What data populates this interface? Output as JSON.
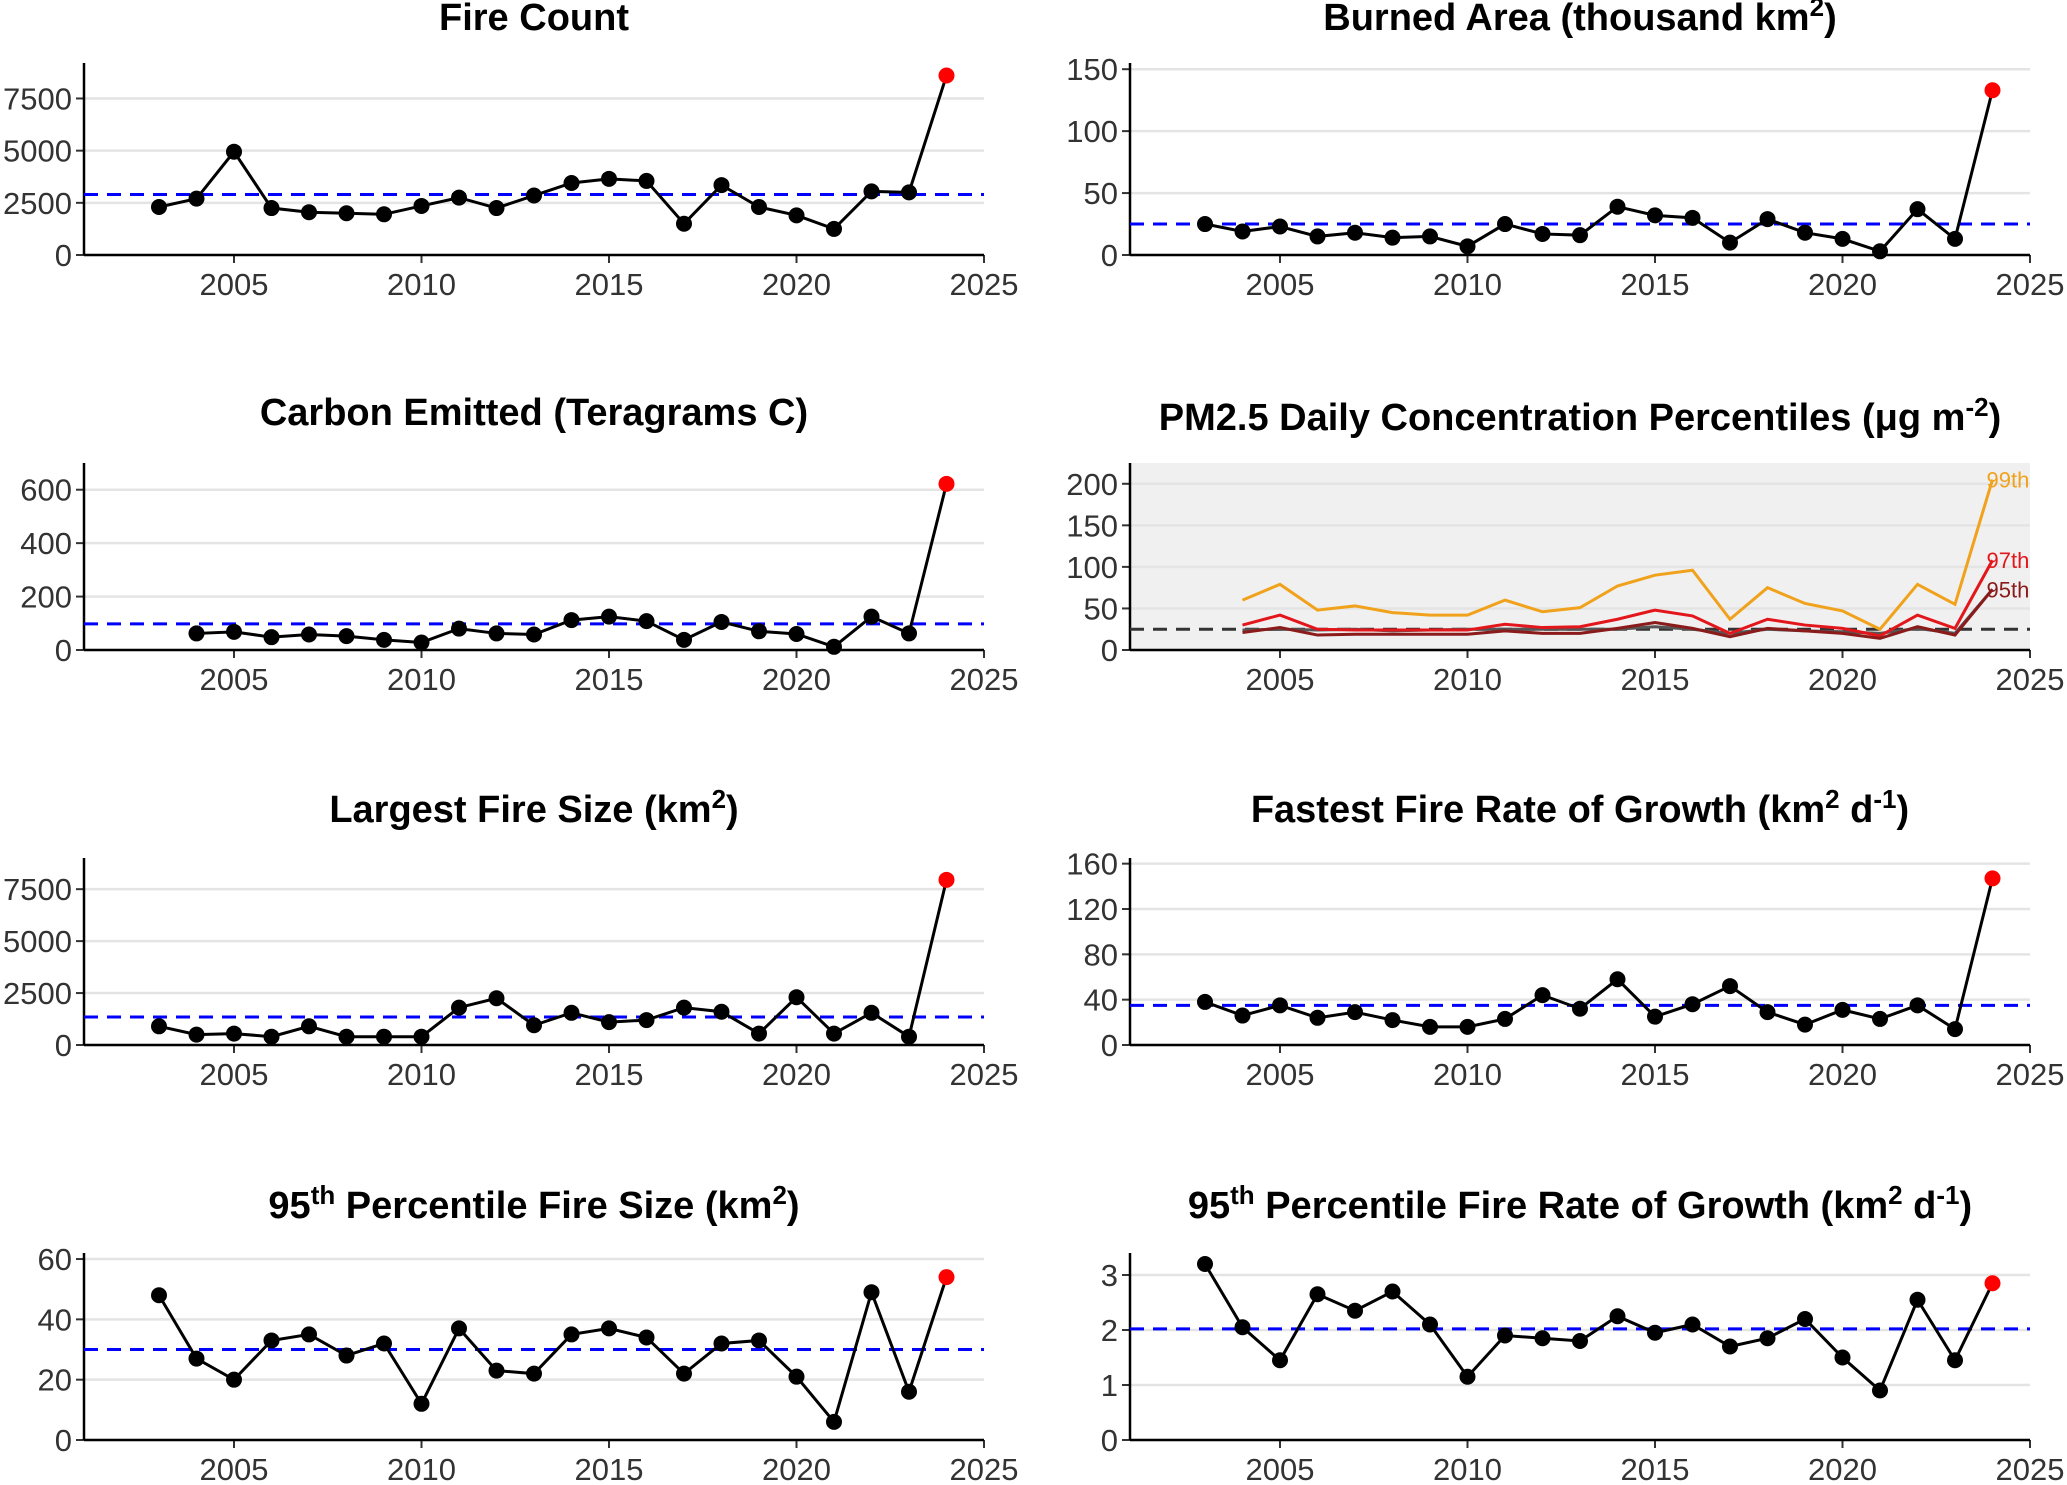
{
  "chart_data": [
    {
      "type": "line",
      "title": "Fire Count",
      "title_sup": "",
      "title_after": "",
      "x": [
        2003,
        2004,
        2005,
        2006,
        2007,
        2008,
        2009,
        2010,
        2011,
        2012,
        2013,
        2014,
        2015,
        2016,
        2017,
        2018,
        2019,
        2020,
        2021,
        2022,
        2023,
        2024
      ],
      "values": [
        2300,
        2700,
        4950,
        2250,
        2050,
        2000,
        1950,
        2350,
        2750,
        2250,
        2850,
        3450,
        3650,
        3550,
        1500,
        3350,
        2300,
        1900,
        1250,
        3050,
        3000,
        8600
      ],
      "highlight_last": true,
      "highlight_color": "#ff0000",
      "reference_line": 2900,
      "reference_color": "#0000ff",
      "xlim": [
        2001,
        2025
      ],
      "xticks": [
        "2005",
        "2010",
        "2015",
        "2020",
        "2025"
      ],
      "ylim": [
        0,
        9200
      ],
      "yticks": [
        0,
        2500,
        5000,
        7500
      ],
      "ytick_labels": [
        "0",
        "2500",
        "5000",
        "7500"
      ]
    },
    {
      "type": "line",
      "title": "Burned Area (thousand km",
      "title_sup": "2",
      "title_after": ")",
      "x": [
        2003,
        2004,
        2005,
        2006,
        2007,
        2008,
        2009,
        2010,
        2011,
        2012,
        2013,
        2014,
        2015,
        2016,
        2017,
        2018,
        2019,
        2020,
        2021,
        2022,
        2023,
        2024
      ],
      "values": [
        25,
        19,
        23,
        15,
        18,
        14,
        15,
        7,
        25,
        17,
        16,
        39,
        32,
        30,
        10,
        29,
        18,
        13,
        3,
        37,
        13,
        133
      ],
      "highlight_last": true,
      "highlight_color": "#ff0000",
      "reference_line": 25,
      "reference_color": "#0000ff",
      "xlim": [
        2001,
        2025
      ],
      "xticks": [
        "2005",
        "2010",
        "2015",
        "2020",
        "2025"
      ],
      "ylim": [
        0,
        155
      ],
      "yticks": [
        0,
        50,
        100,
        150
      ],
      "ytick_labels": [
        "0",
        "50",
        "100",
        "150"
      ]
    },
    {
      "type": "line",
      "title": "Carbon Emitted (Teragrams C)",
      "title_sup": "",
      "title_after": "",
      "x": [
        2004,
        2005,
        2006,
        2007,
        2008,
        2009,
        2010,
        2011,
        2012,
        2013,
        2014,
        2015,
        2016,
        2017,
        2018,
        2019,
        2020,
        2021,
        2022,
        2023,
        2024
      ],
      "values": [
        62,
        68,
        48,
        58,
        52,
        38,
        28,
        80,
        62,
        58,
        112,
        125,
        108,
        38,
        105,
        70,
        60,
        12,
        125,
        62,
        622
      ],
      "highlight_last": true,
      "highlight_color": "#ff0000",
      "reference_line": 98,
      "reference_color": "#0000ff",
      "xlim": [
        2001,
        2025
      ],
      "xticks": [
        "2005",
        "2010",
        "2015",
        "2020",
        "2025"
      ],
      "ylim": [
        0,
        700
      ],
      "yticks": [
        0,
        200,
        400,
        600
      ],
      "ytick_labels": [
        "0",
        "200",
        "400",
        "600"
      ]
    },
    {
      "type": "line",
      "title": "PM2.5 Daily Concentration Percentiles (μg m",
      "title_sup": "-2",
      "title_after": ")",
      "panel_background": "#f0f0f0",
      "x": [
        2004,
        2005,
        2006,
        2007,
        2008,
        2009,
        2010,
        2011,
        2012,
        2013,
        2014,
        2015,
        2016,
        2017,
        2018,
        2019,
        2020,
        2021,
        2022,
        2023,
        2024
      ],
      "series": [
        {
          "name": "99th",
          "color": "#f0a21c",
          "values": [
            60,
            79,
            48,
            53,
            45,
            42,
            42,
            60,
            46,
            51,
            77,
            90,
            96,
            37,
            75,
            56,
            47,
            25,
            79,
            55,
            205
          ]
        },
        {
          "name": "97th",
          "color": "#e3161c",
          "values": [
            30,
            42,
            25,
            24,
            24,
            24,
            24,
            31,
            27,
            28,
            37,
            48,
            41,
            20,
            37,
            30,
            26,
            17,
            42,
            26,
            108
          ]
        },
        {
          "name": "95th",
          "color": "#8b1a1a",
          "values": [
            21,
            27,
            18,
            19,
            19,
            19,
            19,
            23,
            20,
            20,
            26,
            33,
            26,
            16,
            26,
            23,
            20,
            14,
            28,
            18,
            73
          ]
        }
      ],
      "series_gray": {
        "color": "#555555",
        "values": [
          24,
          25,
          24,
          25,
          23,
          24,
          25,
          25,
          25,
          25,
          25,
          28,
          25,
          20,
          25,
          23,
          22,
          20,
          26,
          20,
          73
        ]
      },
      "reference_line": 25,
      "reference_color": "#333333",
      "xlim": [
        2001,
        2025
      ],
      "xticks": [
        "2005",
        "2010",
        "2015",
        "2020",
        "2025"
      ],
      "ylim": [
        0,
        225
      ],
      "yticks": [
        0,
        50,
        100,
        150,
        200
      ],
      "ytick_labels": [
        "0",
        "50",
        "100",
        "150",
        "200"
      ]
    },
    {
      "type": "line",
      "title": "Largest Fire Size (km",
      "title_sup": "2",
      "title_after": ")",
      "x": [
        2003,
        2004,
        2005,
        2006,
        2007,
        2008,
        2009,
        2010,
        2011,
        2012,
        2013,
        2014,
        2015,
        2016,
        2017,
        2018,
        2019,
        2020,
        2021,
        2022,
        2023,
        2024
      ],
      "values": [
        900,
        500,
        550,
        400,
        900,
        400,
        400,
        400,
        1800,
        2250,
        950,
        1550,
        1100,
        1200,
        1800,
        1600,
        550,
        2300,
        550,
        1550,
        400,
        7950
      ],
      "highlight_last": true,
      "highlight_color": "#ff0000",
      "reference_line": 1350,
      "reference_color": "#0000ff",
      "xlim": [
        2001,
        2025
      ],
      "xticks": [
        "2005",
        "2010",
        "2015",
        "2020",
        "2025"
      ],
      "ylim": [
        0,
        9000
      ],
      "yticks": [
        0,
        2500,
        5000,
        7500
      ],
      "ytick_labels": [
        "0",
        "2500",
        "5000",
        "7500"
      ]
    },
    {
      "type": "line",
      "title": "Fastest Fire Rate of Growth (km",
      "title_sup": "2",
      "title_after": " d",
      "title_sup2": "-1",
      "title_after2": ")",
      "x": [
        2003,
        2004,
        2005,
        2006,
        2007,
        2008,
        2009,
        2010,
        2011,
        2012,
        2013,
        2014,
        2015,
        2016,
        2017,
        2018,
        2019,
        2020,
        2021,
        2022,
        2023,
        2024
      ],
      "values": [
        38,
        26,
        35,
        24,
        29,
        22,
        16,
        16,
        23,
        44,
        32,
        58,
        25,
        36,
        52,
        29,
        18,
        31,
        23,
        35,
        14,
        147
      ],
      "highlight_last": true,
      "highlight_color": "#ff0000",
      "reference_line": 35,
      "reference_color": "#0000ff",
      "xlim": [
        2001,
        2025
      ],
      "xticks": [
        "2005",
        "2010",
        "2015",
        "2020",
        "2025"
      ],
      "ylim": [
        0,
        165
      ],
      "yticks": [
        0,
        40,
        80,
        120,
        160
      ],
      "ytick_labels": [
        "0",
        "40",
        "80",
        "120",
        "160"
      ]
    },
    {
      "type": "line",
      "title": "95",
      "title_sup": "th",
      "title_after": " Percentile Fire Size (km",
      "title_sup2": "2",
      "title_after2": ")",
      "x": [
        2003,
        2004,
        2005,
        2006,
        2007,
        2008,
        2009,
        2010,
        2011,
        2012,
        2013,
        2014,
        2015,
        2016,
        2017,
        2018,
        2019,
        2020,
        2021,
        2022,
        2023,
        2024
      ],
      "values": [
        48,
        27,
        20,
        33,
        35,
        28,
        32,
        12,
        37,
        23,
        22,
        35,
        37,
        34,
        22,
        32,
        33,
        21,
        6,
        49,
        16,
        54
      ],
      "highlight_last": true,
      "highlight_color": "#ff0000",
      "reference_line": 30,
      "reference_color": "#0000ff",
      "xlim": [
        2001,
        2025
      ],
      "xticks": [
        "2005",
        "2010",
        "2015",
        "2020",
        "2025"
      ],
      "ylim": [
        0,
        62
      ],
      "yticks": [
        0,
        20,
        40,
        60
      ],
      "ytick_labels": [
        "0",
        "20",
        "40",
        "60"
      ]
    },
    {
      "type": "line",
      "title": "95",
      "title_sup": "th",
      "title_after": " Percentile Fire Rate of Growth (km",
      "title_sup2": "2",
      "title_after2": " d",
      "title_sup3": "-1",
      "title_after3": ")",
      "x": [
        2003,
        2004,
        2005,
        2006,
        2007,
        2008,
        2009,
        2010,
        2011,
        2012,
        2013,
        2014,
        2015,
        2016,
        2017,
        2018,
        2019,
        2020,
        2021,
        2022,
        2023,
        2024
      ],
      "values": [
        3.2,
        2.05,
        1.45,
        2.65,
        2.35,
        2.7,
        2.1,
        1.15,
        1.9,
        1.85,
        1.8,
        2.25,
        1.95,
        2.1,
        1.7,
        1.85,
        2.2,
        1.5,
        0.9,
        2.55,
        1.45,
        2.85
      ],
      "highlight_last": true,
      "highlight_color": "#ff0000",
      "reference_line": 2.02,
      "reference_color": "#0000ff",
      "xlim": [
        2001,
        2025
      ],
      "xticks": [
        "2005",
        "2010",
        "2015",
        "2020",
        "2025"
      ],
      "ylim": [
        0,
        3.4
      ],
      "yticks": [
        0,
        1,
        2,
        3
      ],
      "ytick_labels": [
        "0",
        "1",
        "2",
        "3"
      ]
    }
  ]
}
